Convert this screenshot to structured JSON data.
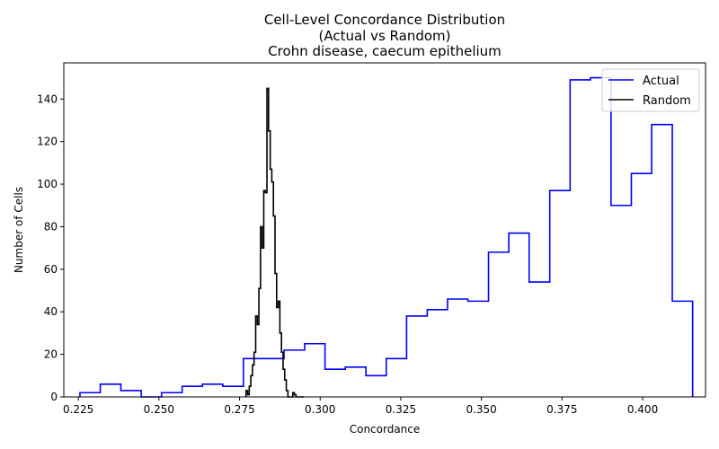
{
  "chart_data": {
    "type": "step-histogram",
    "title_lines": [
      "Cell-Level Concordance Distribution",
      "(Actual vs Random)",
      "Crohn disease, caecum epithelium"
    ],
    "xlabel": "Concordance",
    "ylabel": "Number of Cells",
    "xlim": [
      0.2205,
      0.4195
    ],
    "ylim": [
      0,
      157
    ],
    "xticks": [
      0.225,
      0.25,
      0.275,
      0.3,
      0.325,
      0.35,
      0.375,
      0.4
    ],
    "xtick_labels": [
      "0.225",
      "0.250",
      "0.275",
      "0.300",
      "0.325",
      "0.350",
      "0.375",
      "0.400"
    ],
    "yticks": [
      0,
      20,
      40,
      60,
      80,
      100,
      120,
      140
    ],
    "ytick_labels": [
      "0",
      "20",
      "40",
      "60",
      "80",
      "100",
      "120",
      "140"
    ],
    "grid": false,
    "legend_position": "top-right",
    "series": [
      {
        "name": "Actual",
        "color": "#0000ff",
        "edges": [
          0.2255,
          0.2318,
          0.2382,
          0.2445,
          0.2508,
          0.2572,
          0.2635,
          0.2698,
          0.2762,
          0.2825,
          0.2888,
          0.2952,
          0.3015,
          0.3078,
          0.3142,
          0.3205,
          0.3268,
          0.3332,
          0.3395,
          0.3458,
          0.3522,
          0.3585,
          0.3648,
          0.3712,
          0.3775,
          0.3838,
          0.3902,
          0.3965,
          0.4028,
          0.4092,
          0.4155
        ],
        "counts": [
          2,
          6,
          3,
          0,
          2,
          5,
          6,
          5,
          18,
          18,
          22,
          25,
          13,
          14,
          10,
          18,
          38,
          41,
          46,
          45,
          68,
          77,
          54,
          97,
          149,
          150,
          90,
          105,
          128,
          45
        ]
      },
      {
        "name": "Random",
        "color": "#000000",
        "edges": [
          0.277,
          0.2775,
          0.278,
          0.2785,
          0.279,
          0.2795,
          0.28,
          0.2805,
          0.281,
          0.2815,
          0.282,
          0.2825,
          0.283,
          0.2835,
          0.284,
          0.2845,
          0.285,
          0.2855,
          0.286,
          0.2865,
          0.287,
          0.2875,
          0.288,
          0.2885,
          0.289,
          0.2895,
          0.29,
          0.2905,
          0.291,
          0.2915,
          0.292,
          0.2925,
          0.293,
          0.2935,
          0.294,
          0.2945,
          0.295
        ],
        "counts": [
          3,
          1,
          5,
          10,
          15,
          21,
          38,
          34,
          51,
          80,
          70,
          97,
          96,
          145,
          125,
          107,
          101,
          85,
          58,
          42,
          45,
          30,
          21,
          13,
          8,
          3,
          0,
          0,
          0,
          2,
          1,
          0,
          0,
          0,
          0,
          0
        ]
      }
    ]
  }
}
